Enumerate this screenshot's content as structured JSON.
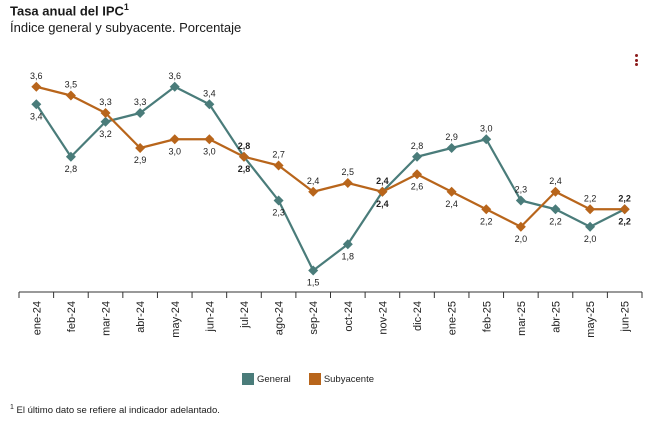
{
  "header": {
    "title": "Tasa anual del IPC",
    "title_sup": "1",
    "subtitle": "Índice general y subyacente. Porcentaje"
  },
  "menu": {
    "icon": "kebab-menu-icon"
  },
  "chart_data": {
    "type": "line",
    "title": "Tasa anual del IPC",
    "subtitle": "Índice general y subyacente. Porcentaje",
    "categories": [
      "ene-24",
      "feb-24",
      "mar-24",
      "abr-24",
      "may-24",
      "jun-24",
      "jul-24",
      "ago-24",
      "sep-24",
      "oct-24",
      "nov-24",
      "dic-24",
      "ene-25",
      "feb-25",
      "mar-25",
      "abr-25",
      "may-25",
      "jun-25"
    ],
    "series": [
      {
        "name": "General",
        "color": "#4a7c7a",
        "values": [
          3.4,
          2.8,
          3.2,
          3.3,
          3.6,
          3.4,
          2.8,
          2.3,
          1.5,
          1.8,
          2.4,
          2.8,
          2.9,
          3.0,
          2.3,
          2.2,
          2.0,
          2.2
        ],
        "labels": [
          "3,4",
          "2,8",
          "3,2",
          "3,3",
          "3,6",
          "3,4",
          "2,8",
          "2,3",
          "1,5",
          "1,8",
          "2,4",
          "2,8",
          "2,9",
          "3,0",
          "2,3",
          "2,2",
          "2,0",
          "2,2"
        ]
      },
      {
        "name": "Subyacente",
        "color": "#b8651b",
        "values": [
          3.6,
          3.5,
          3.3,
          2.9,
          3.0,
          3.0,
          2.8,
          2.7,
          2.4,
          2.5,
          2.4,
          2.6,
          2.4,
          2.2,
          2.0,
          2.4,
          2.2,
          2.2
        ],
        "labels": [
          "3,6",
          "3,5",
          "3,3",
          "2,9",
          "3,0",
          "3,0",
          "2,8",
          "2,7",
          "2,4",
          "2,5",
          "2,4",
          "2,6",
          "2,4",
          "2,2",
          "2,0",
          "2,4",
          "2,2",
          "2,2"
        ]
      }
    ],
    "ylim": [
      1.3,
      3.7
    ],
    "grid": false,
    "legend_position": "bottom"
  },
  "footnote": {
    "sup": "1",
    "text": "El último dato se refiere al indicador adelantado."
  }
}
